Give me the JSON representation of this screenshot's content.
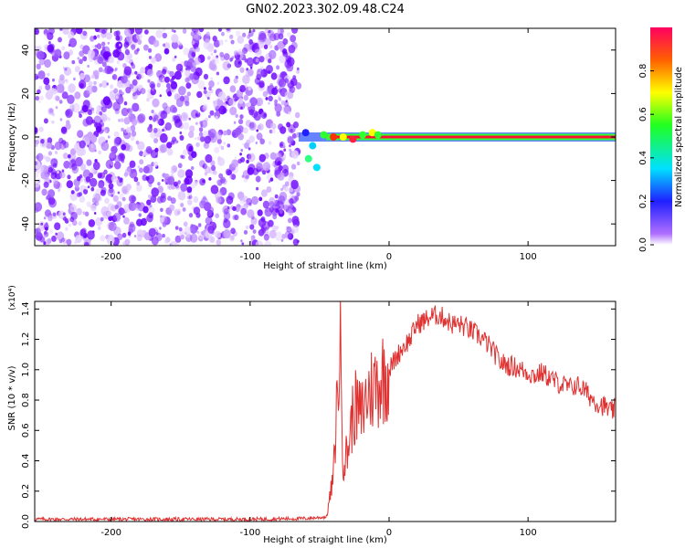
{
  "title": "GN02.2023.302.09.48.C24",
  "chart_data": [
    {
      "type": "heatmap",
      "xlabel": "Height of straight line (km)",
      "ylabel": "Frequency (Hz)",
      "xlim": [
        -255,
        163
      ],
      "ylim": [
        -50,
        50
      ],
      "xticks": [
        -200,
        -100,
        0,
        100
      ],
      "yticks": [
        -40,
        -20,
        0,
        20,
        40
      ],
      "colorbar": {
        "label": "Normalized spectral amplitude",
        "range": [
          0.0,
          1.0
        ],
        "ticks": [
          0.0,
          0.2,
          0.4,
          0.6,
          0.8
        ],
        "tick_labels": [
          "0.0",
          "0.2",
          "0.4",
          "0.6",
          "0.8"
        ]
      },
      "features": {
        "noise_region_x": [
          -255,
          -65
        ],
        "noise_color": "#6a00ff",
        "signal_line_x": [
          -65,
          163
        ],
        "signal_line_freq": 0,
        "signal_line_color": "#ff1030"
      },
      "grid": false
    },
    {
      "type": "line",
      "xlabel": "Height of straight line (km)",
      "ylabel": "SNR (10 * v/v)",
      "scale_label": "(x10⁴)",
      "xlim": [
        -255,
        163
      ],
      "ylim": [
        0,
        1.45
      ],
      "xticks": [
        -200,
        -100,
        0,
        100
      ],
      "yticks": [
        0.0,
        0.2,
        0.4,
        0.6,
        0.8,
        1.0,
        1.2,
        1.4
      ],
      "ytick_labels": [
        "0.0",
        "0.2",
        "0.4",
        "0.6",
        "0.8",
        "1.0",
        "1.2",
        "1.4"
      ],
      "color": "#e03030",
      "grid": false,
      "series": [
        {
          "x": [
            -255,
            -200,
            -150,
            -100,
            -60,
            -45,
            -40,
            -37,
            -35,
            -33,
            -30,
            -28,
            -25,
            -20,
            -15,
            -10,
            -5,
            0,
            5,
            10,
            15,
            20,
            25,
            30,
            35,
            40,
            45,
            50,
            55,
            60,
            65,
            70,
            75,
            80,
            85,
            90,
            95,
            100,
            105,
            110,
            115,
            120,
            125,
            130,
            135,
            140,
            145,
            150,
            155,
            160,
            163
          ],
          "values": [
            0.015,
            0.015,
            0.015,
            0.015,
            0.02,
            0.03,
            0.3,
            0.9,
            1.12,
            0.4,
            0.45,
            0.6,
            0.75,
            0.7,
            0.85,
            0.9,
            0.95,
            1.0,
            1.08,
            1.15,
            1.2,
            1.3,
            1.32,
            1.35,
            1.36,
            1.34,
            1.3,
            1.3,
            1.28,
            1.25,
            1.22,
            1.18,
            1.12,
            1.05,
            1.03,
            1.02,
            1.0,
            0.98,
            0.96,
            0.98,
            0.95,
            0.92,
            0.9,
            0.88,
            0.9,
            0.87,
            0.82,
            0.78,
            0.76,
            0.72,
            0.75
          ]
        }
      ]
    }
  ]
}
